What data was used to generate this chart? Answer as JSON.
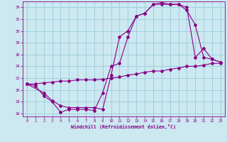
{
  "xlabel": "Windchill (Refroidissement éolien,°C)",
  "bg_color": "#cce8f0",
  "line_color": "#880088",
  "grid_color": "#99ccdd",
  "xlim": [
    -0.5,
    23.5
  ],
  "ylim": [
    15.5,
    35.0
  ],
  "yticks": [
    16,
    18,
    20,
    22,
    24,
    26,
    28,
    30,
    32,
    34
  ],
  "xticks": [
    0,
    1,
    2,
    3,
    4,
    5,
    6,
    7,
    8,
    9,
    10,
    11,
    12,
    13,
    14,
    15,
    16,
    17,
    18,
    19,
    20,
    21,
    22,
    23
  ],
  "curve1_x": [
    0,
    1,
    2,
    3,
    4,
    5,
    6,
    7,
    8,
    9,
    10,
    11,
    12,
    13,
    14,
    15,
    16,
    17,
    18,
    19,
    20,
    21,
    22,
    23
  ],
  "curve1_y": [
    21.0,
    20.7,
    19.0,
    18.0,
    16.2,
    16.7,
    16.7,
    16.7,
    16.5,
    19.5,
    24.0,
    24.5,
    29.0,
    32.5,
    33.0,
    34.5,
    34.8,
    34.5,
    34.5,
    34.0,
    25.5,
    27.0,
    25.2,
    24.7
  ],
  "curve2_x": [
    0,
    2,
    3,
    4,
    5,
    6,
    7,
    8,
    9,
    10,
    11,
    12,
    13,
    14,
    15,
    16,
    17,
    18,
    19,
    20,
    21,
    22,
    23
  ],
  "curve2_y": [
    21.0,
    19.5,
    18.2,
    17.3,
    17.0,
    17.0,
    17.0,
    17.0,
    16.7,
    22.5,
    29.0,
    30.0,
    32.5,
    33.0,
    34.5,
    34.5,
    34.5,
    34.5,
    33.5,
    31.0,
    25.5,
    25.2,
    24.7
  ],
  "curve3_x": [
    0,
    1,
    2,
    3,
    4,
    5,
    6,
    7,
    8,
    9,
    10,
    11,
    12,
    13,
    14,
    15,
    16,
    17,
    18,
    19,
    20,
    21,
    22,
    23
  ],
  "curve3_y": [
    21.0,
    21.0,
    21.2,
    21.3,
    21.5,
    21.5,
    21.7,
    21.7,
    21.7,
    21.8,
    22.0,
    22.2,
    22.5,
    22.7,
    23.0,
    23.2,
    23.2,
    23.5,
    23.7,
    24.0,
    24.0,
    24.2,
    24.5,
    24.5
  ]
}
